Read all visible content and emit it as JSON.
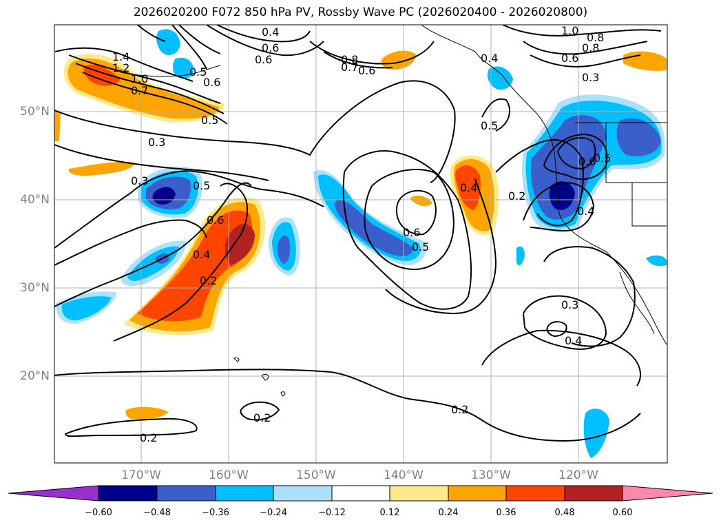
{
  "title": "2026020200 F072 850 hPa PV, Rossby Wave PC (2026020400 - 2026020800)",
  "lat_labels": [
    "50°N",
    "40°N",
    "30°N",
    "20°N"
  ],
  "lon_labels": [
    "170°W",
    "160°W",
    "150°W",
    "140°W",
    "130°W",
    "120°W"
  ],
  "colorbar": {
    "ticks": [
      "−0.60",
      "−0.48",
      "−0.36",
      "−0.24",
      "−0.12",
      "0.12",
      "0.24",
      "0.36",
      "0.48",
      "0.60"
    ],
    "colors": [
      "#9932CC",
      "#00008B",
      "#3A5FCD",
      "#00BFFF",
      "#ADE1FA",
      "#FFFFFF",
      "#FFE98A",
      "#FFA500",
      "#FF4500",
      "#B22222",
      "#FF88AA"
    ]
  },
  "contour_labels": [
    {
      "text": "0.4"
    },
    {
      "text": "0.6"
    },
    {
      "text": "0.6"
    },
    {
      "text": "0.5"
    },
    {
      "text": "0.6"
    },
    {
      "text": "0.8"
    },
    {
      "text": "0.7"
    },
    {
      "text": "0.6"
    },
    {
      "text": "1.4"
    },
    {
      "text": "1.2"
    },
    {
      "text": "1.0"
    },
    {
      "text": "0.7"
    },
    {
      "text": "0.5"
    },
    {
      "text": "0.3"
    },
    {
      "text": "0.3"
    },
    {
      "text": "0.5"
    },
    {
      "text": "0.6"
    },
    {
      "text": "0.4"
    },
    {
      "text": "0.2"
    },
    {
      "text": "0.4"
    },
    {
      "text": "0.6"
    },
    {
      "text": "0.5"
    },
    {
      "text": "0.4"
    },
    {
      "text": "0.5"
    },
    {
      "text": "0.2"
    },
    {
      "text": "1.0"
    },
    {
      "text": "0.8"
    },
    {
      "text": "0.6"
    },
    {
      "text": "0.8"
    },
    {
      "text": "0.3"
    },
    {
      "text": "0.6"
    },
    {
      "text": "0.5"
    },
    {
      "text": "0.4"
    },
    {
      "text": "0.3"
    },
    {
      "text": "0.4"
    },
    {
      "text": "0.2"
    },
    {
      "text": "0.2"
    },
    {
      "text": "0.2"
    }
  ]
}
